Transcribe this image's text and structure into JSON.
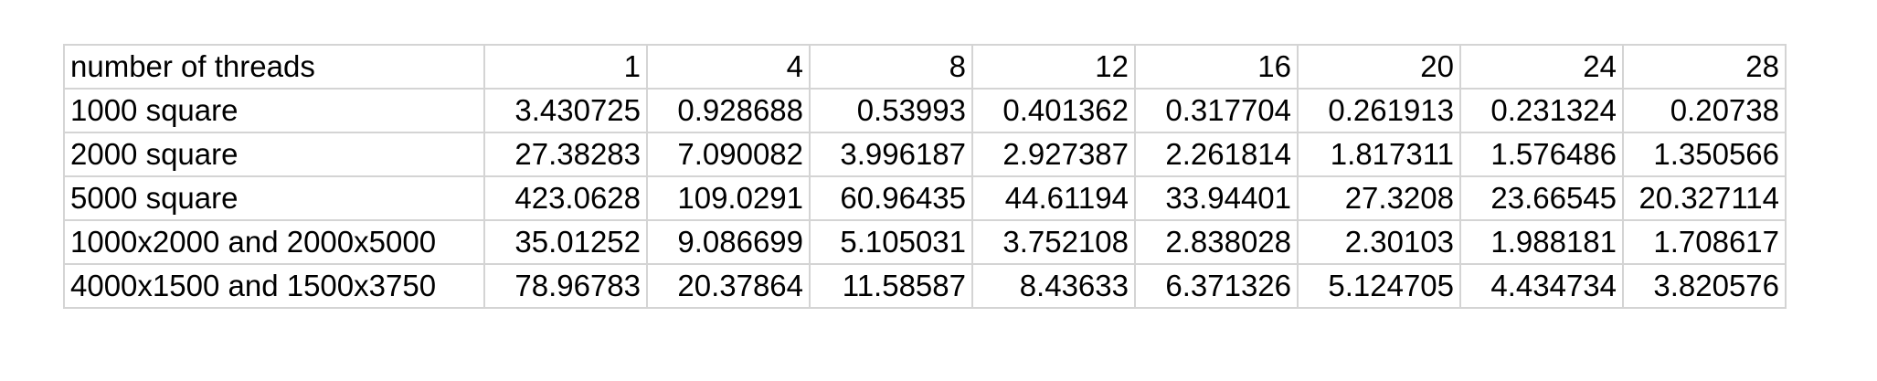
{
  "table": {
    "header": {
      "label": "number of threads",
      "values": [
        "1",
        "4",
        "8",
        "12",
        "16",
        "20",
        "24",
        "28"
      ]
    },
    "rows": [
      {
        "label": "1000 square",
        "values": [
          "3.430725",
          "0.928688",
          "0.53993",
          "0.401362",
          "0.317704",
          "0.261913",
          "0.231324",
          "0.20738"
        ]
      },
      {
        "label": "2000 square",
        "values": [
          "27.38283",
          "7.090082",
          "3.996187",
          "2.927387",
          "2.261814",
          "1.817311",
          "1.576486",
          "1.350566"
        ]
      },
      {
        "label": "5000 square",
        "values": [
          "423.0628",
          "109.0291",
          "60.96435",
          "44.61194",
          "33.94401",
          "27.3208",
          "23.66545",
          "20.327114"
        ]
      },
      {
        "label": "1000x2000 and 2000x5000",
        "values": [
          "35.01252",
          "9.086699",
          "5.105031",
          "3.752108",
          "2.838028",
          "2.30103",
          "1.988181",
          "1.708617"
        ]
      },
      {
        "label": "4000x1500 and 1500x3750",
        "values": [
          "78.96783",
          "20.37864",
          "11.58587",
          "8.43633",
          "6.371326",
          "5.124705",
          "4.434734",
          "3.820576"
        ]
      }
    ]
  }
}
